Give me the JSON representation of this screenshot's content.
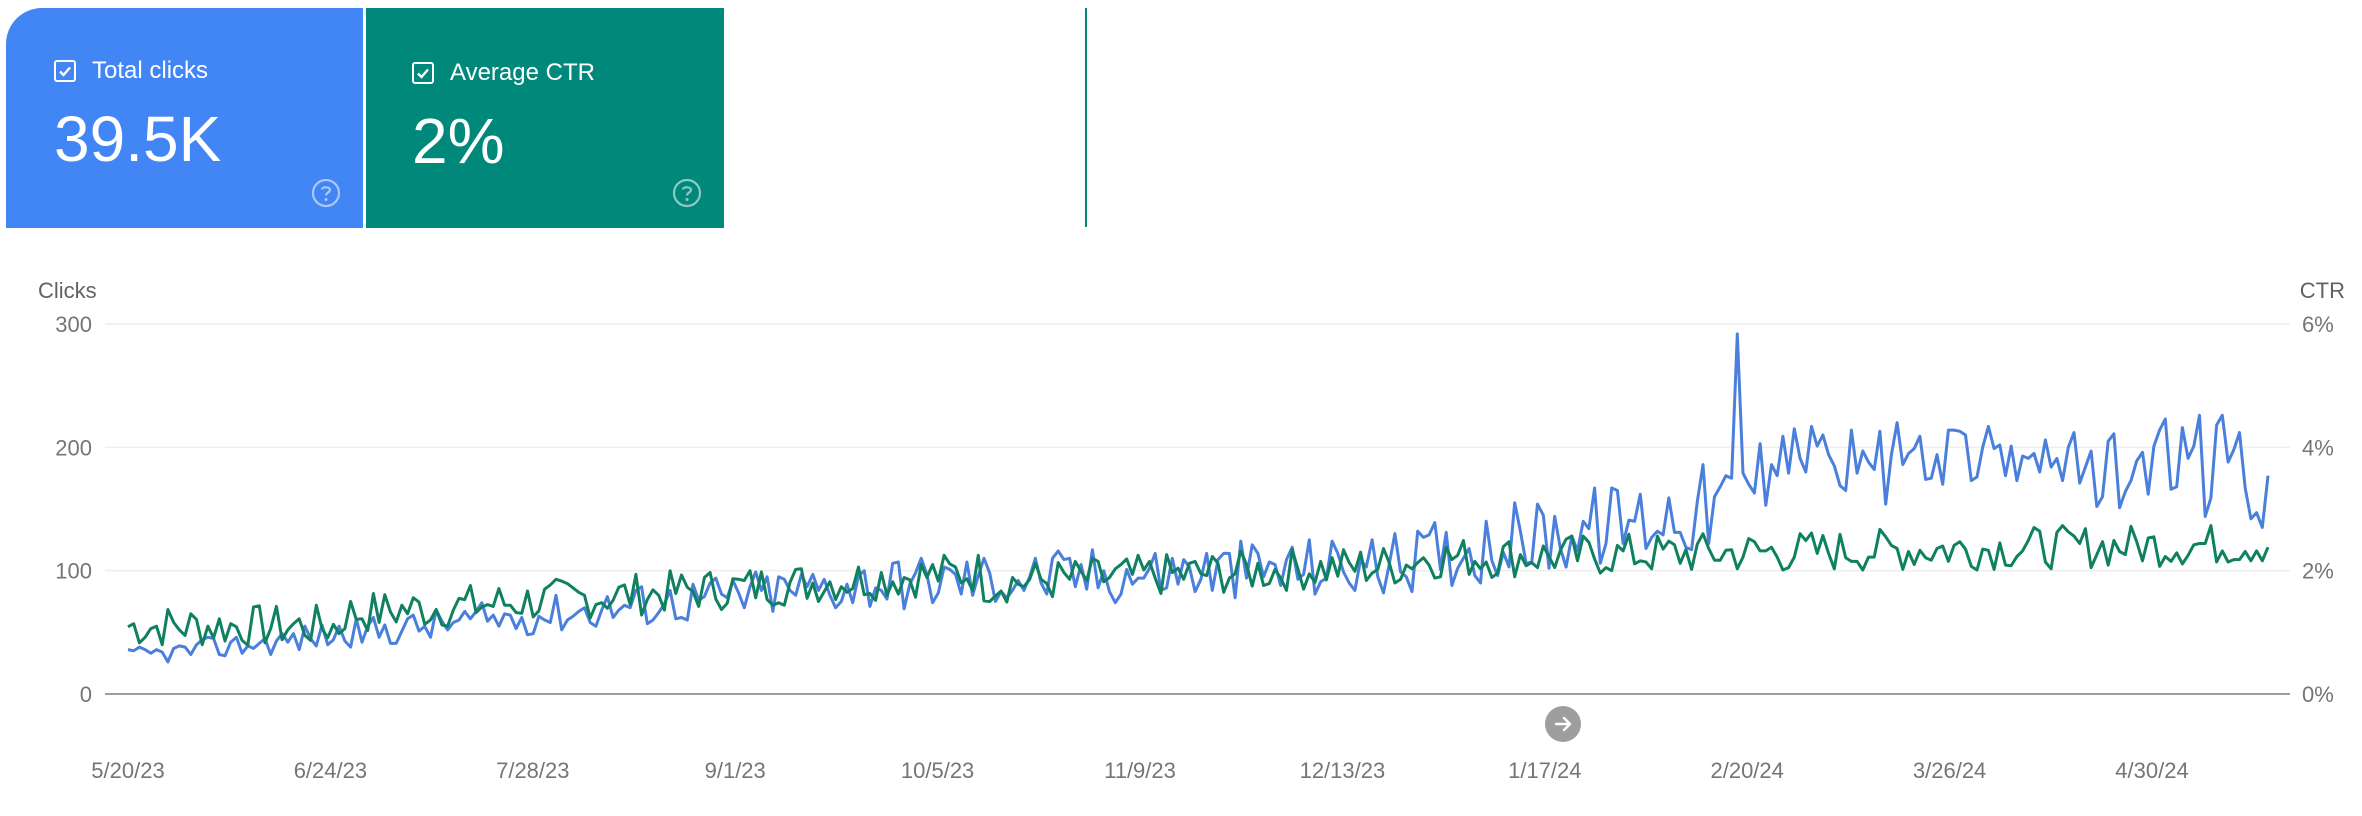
{
  "metrics": {
    "clicks": {
      "label": "Total clicks",
      "value": "39.5K",
      "checked": true,
      "color": "#4285f4"
    },
    "ctr": {
      "label": "Average CTR",
      "value": "2%",
      "checked": true,
      "color": "#00897b"
    }
  },
  "icons": {
    "checkbox": "checkbox-checked-icon",
    "help": "help-circle-icon",
    "scroll": "arrow-right-circle-icon"
  },
  "chart_data": {
    "type": "line",
    "y_left": {
      "title": "Clicks",
      "ticks": [
        "300",
        "200",
        "100",
        "0"
      ],
      "range": [
        0,
        300
      ],
      "tick_values": [
        300,
        200,
        100,
        0
      ]
    },
    "y_right": {
      "title": "CTR",
      "ticks": [
        "6%",
        "4%",
        "2%",
        "0%"
      ],
      "range": [
        0,
        6
      ],
      "tick_values": [
        6,
        4,
        2,
        0
      ]
    },
    "x_ticks": [
      "5/20/23",
      "6/24/23",
      "7/28/23",
      "9/1/23",
      "10/5/23",
      "11/9/23",
      "12/13/23",
      "1/17/24",
      "2/20/24",
      "3/26/24",
      "4/30/24"
    ],
    "x_start": "2023-05-20",
    "x_end": "2024-05-31",
    "grid": true,
    "series": [
      {
        "name": "Total clicks",
        "axis": "left",
        "color": "#4a7fdc",
        "values": []
      },
      {
        "name": "Average CTR",
        "axis": "right",
        "color": "#0f8060",
        "values": []
      }
    ]
  }
}
